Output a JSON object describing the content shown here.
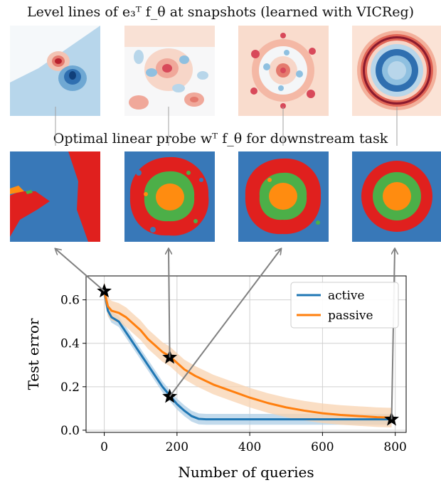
{
  "header": {
    "title1": "Level lines of e₃ᵀ f_θ at snapshots (learned with VICReg)",
    "title2": "Optimal linear probe wᵀ f_θ for downstream task"
  },
  "colors": {
    "active": "#1f77b4",
    "passive": "#ff7f0e",
    "active_band": "#aecde6",
    "passive_band": "#f8d3b0",
    "probe_blue": "#3878b8",
    "probe_red": "#e0201e",
    "probe_green": "#4caf48",
    "probe_orange": "#ff8c10"
  },
  "chart_data": {
    "type": "line",
    "title": "",
    "xlabel": "Number of queries",
    "ylabel": "Test error",
    "xlim": [
      -50,
      830
    ],
    "ylim": [
      -0.01,
      0.71
    ],
    "xticks": [
      0,
      200,
      400,
      600,
      800
    ],
    "yticks": [
      0.0,
      0.2,
      0.4,
      0.6
    ],
    "grid": true,
    "legend_position": "top-right",
    "series": [
      {
        "name": "active",
        "color": "#1f77b4",
        "x": [
          0,
          10,
          20,
          40,
          60,
          80,
          100,
          120,
          140,
          160,
          180,
          200,
          220,
          240,
          260,
          280,
          300,
          400,
          500,
          600,
          700,
          790
        ],
        "y": [
          0.64,
          0.55,
          0.52,
          0.5,
          0.45,
          0.4,
          0.35,
          0.3,
          0.25,
          0.2,
          0.16,
          0.12,
          0.09,
          0.065,
          0.052,
          0.05,
          0.05,
          0.05,
          0.05,
          0.05,
          0.05,
          0.05
        ],
        "band": 0.025
      },
      {
        "name": "passive",
        "color": "#ff7f0e",
        "x": [
          0,
          10,
          20,
          40,
          60,
          80,
          100,
          120,
          140,
          160,
          180,
          200,
          220,
          250,
          300,
          350,
          400,
          450,
          500,
          550,
          600,
          650,
          700,
          750,
          790
        ],
        "y": [
          0.64,
          0.57,
          0.55,
          0.54,
          0.52,
          0.49,
          0.46,
          0.42,
          0.39,
          0.36,
          0.34,
          0.31,
          0.28,
          0.25,
          0.21,
          0.18,
          0.15,
          0.125,
          0.105,
          0.09,
          0.078,
          0.07,
          0.065,
          0.06,
          0.058
        ],
        "band": 0.045
      }
    ],
    "snapshots": [
      {
        "x": 0,
        "y": 0.64
      },
      {
        "x": 180,
        "y": 0.335
      },
      {
        "x": 180,
        "y": 0.155
      },
      {
        "x": 790,
        "y": 0.05
      }
    ]
  }
}
